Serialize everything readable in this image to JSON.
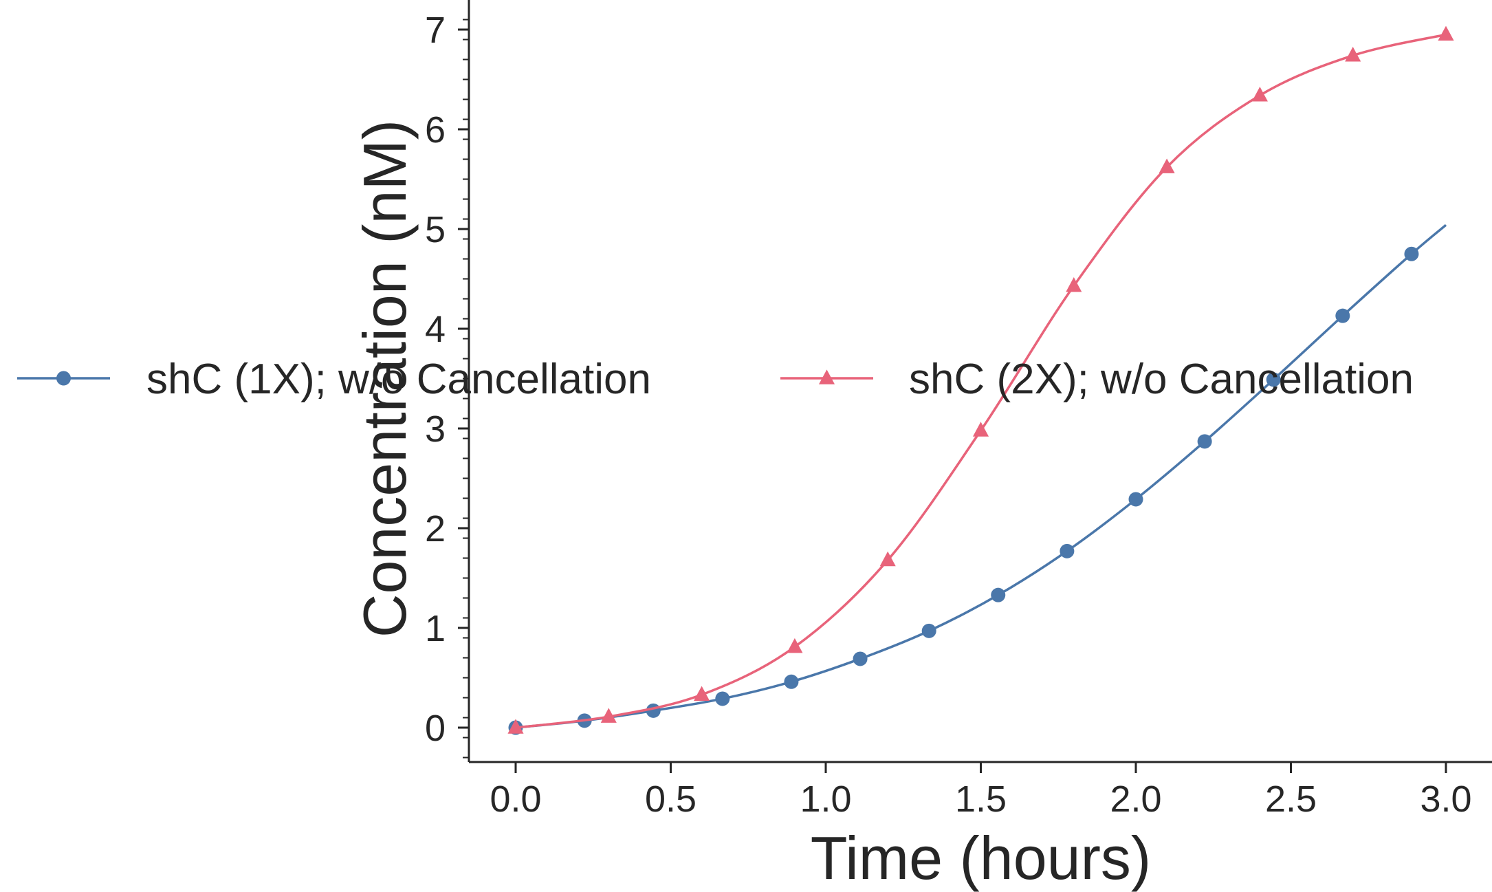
{
  "chart_data": {
    "type": "line",
    "title": "",
    "xlabel": "Time (hours)",
    "ylabel": "Concentration (nM)",
    "xlim": [
      -0.15,
      3.15
    ],
    "ylim": [
      -0.35,
      7.35
    ],
    "xticks": [
      0.0,
      0.5,
      1.0,
      1.5,
      2.0,
      2.5,
      3.0
    ],
    "xtick_labels": [
      "0.0",
      "0.5",
      "1.0",
      "1.5",
      "2.0",
      "2.5",
      "3.0"
    ],
    "yticks": [
      0,
      1,
      2,
      3,
      4,
      5,
      6,
      7
    ],
    "ytick_labels": [
      "0",
      "1",
      "2",
      "3",
      "4",
      "5",
      "6",
      "7"
    ],
    "y_minor_step": 0.2,
    "grid": false,
    "legend_placement": "center, overlapping plot, two columns",
    "series": [
      {
        "name": "shC (1X); w/o Cancellation",
        "color": "#4a77aa",
        "marker": "circle",
        "x": [
          0.0,
          0.222,
          0.444,
          0.667,
          0.889,
          1.111,
          1.333,
          1.556,
          1.778,
          2.0,
          2.222,
          2.444,
          2.667,
          2.889,
          3.0
        ],
        "y": [
          0.0,
          0.07,
          0.17,
          0.29,
          0.46,
          0.69,
          0.97,
          1.33,
          1.77,
          2.29,
          2.87,
          3.49,
          4.13,
          4.75,
          5.04
        ]
      },
      {
        "name": "shC (2X); w/o Cancellation",
        "color": "#e8637a",
        "marker": "triangle",
        "x": [
          0.0,
          0.3,
          0.6,
          0.9,
          1.2,
          1.5,
          1.8,
          2.1,
          2.4,
          2.7,
          3.0
        ],
        "y": [
          0.0,
          0.11,
          0.33,
          0.81,
          1.68,
          2.98,
          4.43,
          5.62,
          6.34,
          6.74,
          6.95
        ]
      }
    ]
  }
}
